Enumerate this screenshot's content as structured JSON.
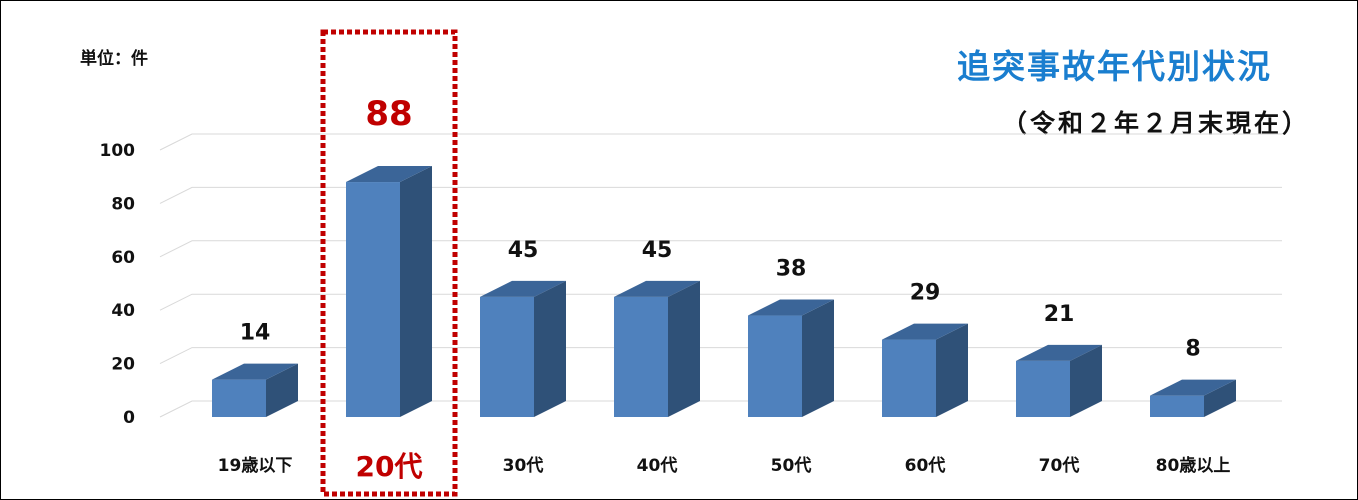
{
  "unit_label": "単位：件",
  "title": "追突事故年代別状況",
  "subtitle": "（令和２年２月末現在）",
  "colors": {
    "bar": "#4f81bd",
    "bar_side": "#2f5178",
    "bar_top": "#3b6598",
    "highlight": "#c00000",
    "title": "#1a7ecf"
  },
  "chart_data": {
    "type": "bar",
    "categories": [
      "19歳以下",
      "20代",
      "30代",
      "40代",
      "50代",
      "60代",
      "70代",
      "80歳以上"
    ],
    "values": [
      14,
      88,
      45,
      45,
      38,
      29,
      21,
      8
    ],
    "title": "追突事故年代別状況",
    "subtitle": "（令和２年２月末現在）",
    "ylabel": "単位：件",
    "ylim": [
      0,
      100
    ],
    "yticks": [
      0,
      20,
      40,
      60,
      80,
      100
    ],
    "grid": true,
    "highlight_category": "20代",
    "data_labels": true
  }
}
